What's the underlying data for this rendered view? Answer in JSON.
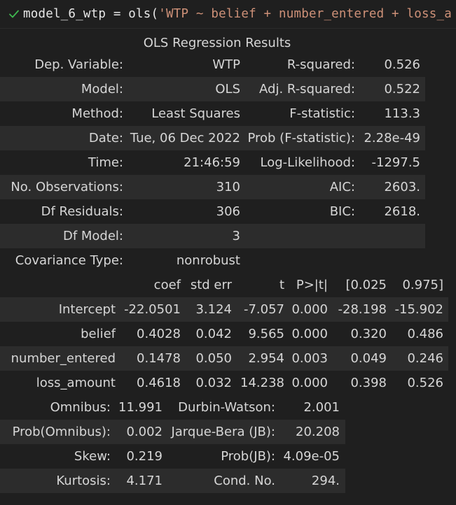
{
  "code_cell": {
    "status_icon": "check-icon",
    "var": "model_6_wtp = ols(",
    "str": "'WTP ~ belief + number_entered + loss_a"
  },
  "table1": {
    "caption": "OLS Regression Results",
    "rows": [
      [
        "Dep. Variable:",
        "WTP",
        "R-squared:",
        "0.526"
      ],
      [
        "Model:",
        "OLS",
        "Adj. R-squared:",
        "0.522"
      ],
      [
        "Method:",
        "Least Squares",
        "F-statistic:",
        "113.3"
      ],
      [
        "Date:",
        "Tue, 06 Dec 2022",
        "Prob (F-statistic):",
        "2.28e-49"
      ],
      [
        "Time:",
        "21:46:59",
        "Log-Likelihood:",
        "-1297.5"
      ],
      [
        "No. Observations:",
        "310",
        "AIC:",
        "2603."
      ],
      [
        "Df Residuals:",
        "306",
        "BIC:",
        "2618."
      ],
      [
        "Df Model:",
        "3",
        "",
        ""
      ],
      [
        "Covariance Type:",
        "nonrobust",
        "",
        ""
      ]
    ]
  },
  "table2": {
    "header": [
      "",
      "coef",
      "std err",
      "t",
      "P>|t|",
      "[0.025",
      "0.975]"
    ],
    "rows": [
      [
        "Intercept",
        "-22.0501",
        "3.124",
        "-7.057",
        "0.000",
        "-28.198",
        "-15.902"
      ],
      [
        "belief",
        "0.4028",
        "0.042",
        "9.565",
        "0.000",
        "0.320",
        "0.486"
      ],
      [
        "number_entered",
        "0.1478",
        "0.050",
        "2.954",
        "0.003",
        "0.049",
        "0.246"
      ],
      [
        "loss_amount",
        "0.4618",
        "0.032",
        "14.238",
        "0.000",
        "0.398",
        "0.526"
      ]
    ]
  },
  "table3": {
    "rows": [
      [
        "Omnibus:",
        "11.991",
        "Durbin-Watson:",
        "2.001"
      ],
      [
        "Prob(Omnibus):",
        "0.002",
        "Jarque-Bera (JB):",
        "20.208"
      ],
      [
        "Skew:",
        "0.219",
        "Prob(JB):",
        "4.09e-05"
      ],
      [
        "Kurtosis:",
        "4.171",
        "Cond. No.",
        "294."
      ]
    ]
  },
  "colors": {
    "background": "#1f1f1f",
    "row_shade": "#2c2c2c",
    "text": "#d6d6d6",
    "string": "#ce9178",
    "check": "#3fb950"
  }
}
